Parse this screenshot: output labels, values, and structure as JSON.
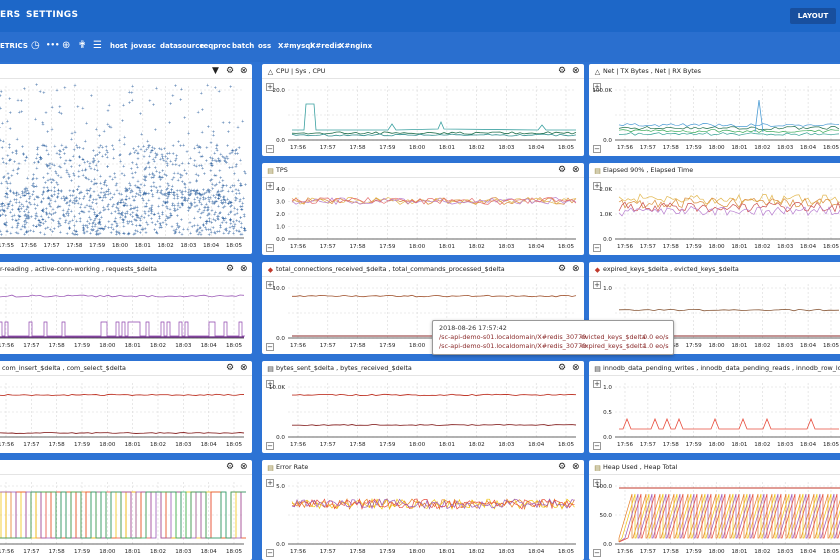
{
  "nav": {
    "item1": "ERS",
    "item2": "SETTINGS",
    "layout": "LAYOUT"
  },
  "toolbar": {
    "metrics": "ETRICS",
    "more": "•••",
    "filters": [
      "host",
      "jovasc",
      "datasource",
      "reqproc",
      "batch",
      "oss",
      "X#mysql",
      "X#redis",
      "X#nginx"
    ]
  },
  "panels": [
    {
      "title": "",
      "x_ticks": [
        "17:55",
        "17:56",
        "17:57",
        "17:58",
        "17:59",
        "18:00",
        "18:01",
        "18:02",
        "18:03",
        "18:04",
        "18:05"
      ],
      "y_ticks": [],
      "icon": ""
    },
    {
      "title": "CPU | Sys , CPU",
      "x_ticks": [
        "17:56",
        "17:57",
        "17:58",
        "17:59",
        "18:00",
        "18:01",
        "18:02",
        "18:03",
        "18:04",
        "18:05"
      ],
      "y_ticks": [
        "20.0",
        "0.0"
      ],
      "icon": "cpu-icon"
    },
    {
      "title": "Net | TX Bytes , Net | RX Bytes",
      "x_ticks": [
        "17:56",
        "17:57",
        "17:58",
        "17:59",
        "18:00",
        "18:01",
        "18:02",
        "18:03",
        "18:04",
        "18:05"
      ],
      "y_ticks": [
        "100.0K",
        "0.0"
      ],
      "icon": "net-icon"
    },
    {
      "title": "TPS",
      "x_ticks": [
        "17:56",
        "17:57",
        "17:58",
        "17:59",
        "18:00",
        "18:01",
        "18:02",
        "18:03",
        "18:04",
        "18:05"
      ],
      "y_ticks": [
        "4.0",
        "3.0",
        "2.0",
        "1.0",
        "0.0"
      ],
      "icon": "chart-icon"
    },
    {
      "title": "Elapsed 90% , Elapsed Time",
      "x_ticks": [
        "17:56",
        "17:57",
        "17:58",
        "17:59",
        "18:00",
        "18:01",
        "18:02",
        "18:03",
        "18:04",
        "18:05"
      ],
      "y_ticks": [
        "2.0K",
        "1.0K",
        "0.0"
      ],
      "icon": "chart-icon"
    },
    {
      "title": "der-reading , active-conn-working , requests_$delta",
      "x_ticks": [
        "17:56",
        "17:57",
        "17:58",
        "17:59",
        "18:00",
        "18:01",
        "18:02",
        "18:03",
        "18:04",
        "18:05"
      ],
      "y_ticks": [],
      "icon": ""
    },
    {
      "title": "total_connections_received_$delta , total_commands_processed_$delta",
      "x_ticks": [
        "17:56",
        "17:57",
        "17:58",
        "17:59",
        "18:00",
        "18:01",
        "18:02",
        "18:03",
        "18:04",
        "18:05"
      ],
      "y_ticks": [
        "10.0",
        "0.0"
      ],
      "icon": "redis-icon"
    },
    {
      "title": "expired_keys_$delta , evicted_keys_$delta",
      "x_ticks": [
        "17:56",
        "17:57",
        "17:58",
        "17:59",
        "18:00",
        "18:01",
        "18:02",
        "18:03",
        "18:04",
        "18:05"
      ],
      "y_ticks": [
        "1.0",
        "0.0"
      ],
      "icon": "redis-icon"
    },
    {
      "title": "e , com_insert_$delta , com_select_$delta",
      "x_ticks": [
        "17:56",
        "17:57",
        "17:58",
        "17:59",
        "18:00",
        "18:01",
        "18:02",
        "18:03",
        "18:04",
        "18:05"
      ],
      "y_ticks": [],
      "icon": ""
    },
    {
      "title": "bytes_sent_$delta , bytes_received_$delta",
      "x_ticks": [
        "17:56",
        "17:57",
        "17:58",
        "17:59",
        "18:00",
        "18:01",
        "18:02",
        "18:03",
        "18:04",
        "18:05"
      ],
      "y_ticks": [
        "10.0K",
        "0.0"
      ],
      "icon": "mysql-icon"
    },
    {
      "title": "innodb_data_pending_writes , innodb_data_pending_reads , innodb_row_lock_w",
      "x_ticks": [
        "17:56",
        "17:57",
        "17:58",
        "17:59",
        "18:00",
        "18:01",
        "18:02",
        "18:03",
        "18:04",
        "18:05"
      ],
      "y_ticks": [
        "1.0",
        "0.5",
        "0.0"
      ],
      "icon": "mysql-icon"
    },
    {
      "title": "",
      "x_ticks": [
        "17:56",
        "17:57",
        "17:58",
        "17:59",
        "18:00",
        "18:01",
        "18:02",
        "18:03",
        "18:04",
        "18:05"
      ],
      "y_ticks": [],
      "icon": ""
    },
    {
      "title": "Error Rate",
      "x_ticks": [
        "17:56",
        "17:57",
        "17:58",
        "17:59",
        "18:00",
        "18:01",
        "18:02",
        "18:03",
        "18:04",
        "18:05"
      ],
      "y_ticks": [
        "5.0",
        "0.0"
      ],
      "icon": "chart-icon"
    },
    {
      "title": "Heap Used , Heap Total",
      "x_ticks": [
        "17:56",
        "17:57",
        "17:58",
        "17:59",
        "18:00",
        "18:01",
        "18:02",
        "18:03",
        "18:04",
        "18:05"
      ],
      "y_ticks": [
        "100.0",
        "50.0",
        "0.0"
      ],
      "icon": "chart-icon"
    }
  ],
  "tooltip": {
    "time": "2018-08-26 17:57:42",
    "rows": [
      {
        "source": "/sc-api-demo-s01.localdomain/X#redis_30779",
        "metric": "evicted_keys_$delta",
        "value": "0.0 eo/s"
      },
      {
        "source": "/sc-api-demo-s01.localdomain/X#redis_30779",
        "metric": "expired_keys_$delta",
        "value": "1.0 eo/s"
      }
    ]
  },
  "colors": {
    "topbar": "#1d67c8",
    "page": "#2d73d4",
    "scatter": "#2b5f9e"
  }
}
